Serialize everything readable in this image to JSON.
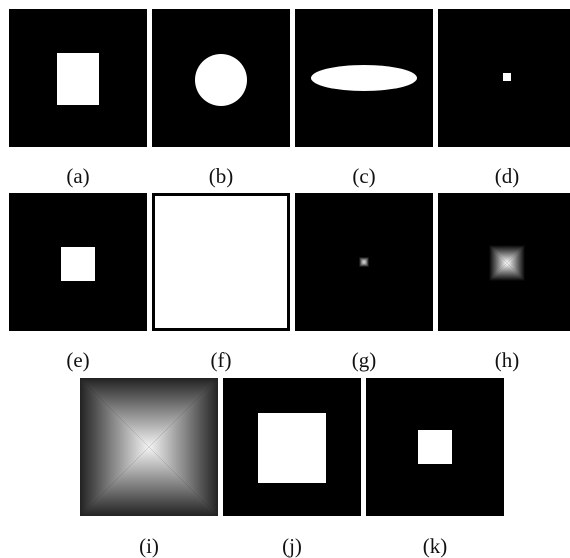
{
  "labels": {
    "a": "(a)",
    "b": "(b)",
    "c": "(c)",
    "d": "(d)",
    "e": "(e)",
    "f": "(f)",
    "g": "(g)",
    "h": "(h)",
    "i": "(i)",
    "j": "(j)",
    "k": "(k)"
  },
  "colors": {
    "background": "#000000",
    "foreground": "#ffffff"
  }
}
